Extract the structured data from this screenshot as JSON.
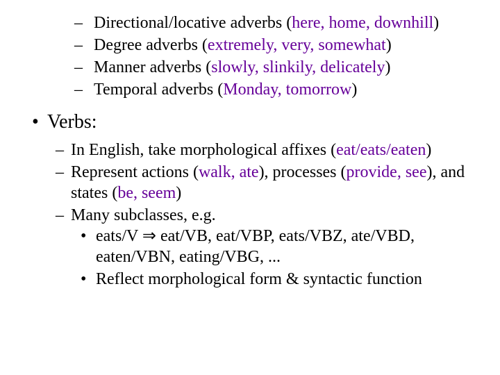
{
  "colors": {
    "text": "#000000",
    "highlight": "#660099",
    "background": "#ffffff"
  },
  "typography": {
    "family": "Times New Roman",
    "body_fontsize_pt": 24,
    "heading_fontsize_pt": 28,
    "line_height": 1.25
  },
  "adverbs": {
    "item1": {
      "pre": "Directional/locative adverbs (",
      "examples": "here, home, downhill",
      "post": ")"
    },
    "item2": {
      "pre": "Degree adverbs (",
      "examples": "extremely, very, somewhat",
      "post": ")"
    },
    "item3": {
      "pre": "Manner adverbs (",
      "examples": "slowly, slinkily, delicately",
      "post": ")"
    },
    "item4": {
      "pre": "Temporal adverbs (",
      "examples": "Monday, tomorrow",
      "post": ")"
    }
  },
  "verbs": {
    "heading": "Verbs:",
    "sub1": {
      "pre": "In English, take morphological affixes (",
      "ex": "eat/eats/eaten",
      "post": ")"
    },
    "sub2": {
      "a": "Represent actions (",
      "ex1": "walk, ate",
      "b": "), processes (",
      "ex2": "provide, see",
      "c": "), and states (",
      "ex3": "be, seem",
      "d": ")"
    },
    "sub3": "Many subclasses, e.g.",
    "subsub1": {
      "a": "eats/V ",
      "implies": "⇒",
      "b": " eat/VB, eat/VBP, eats/VBZ, ate/VBD, eaten/VBN, eating/VBG, ..."
    },
    "subsub2": "Reflect morphological form & syntactic function"
  }
}
